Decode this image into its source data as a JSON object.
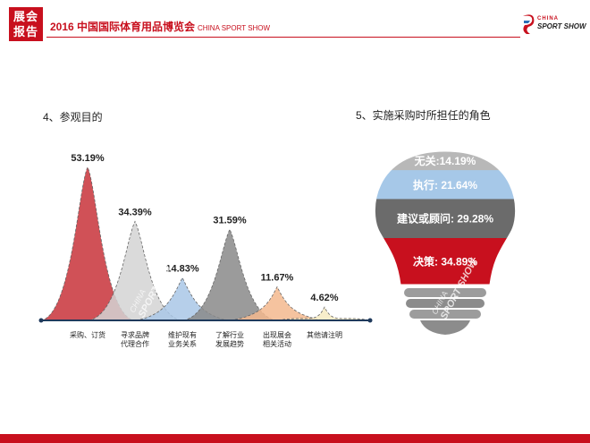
{
  "header": {
    "badge_top": "展会",
    "badge_bottom": "报告",
    "title": "2016 中国国际体育用品博览会",
    "title_en": "CHINA SPORT SHOW",
    "logo_line1": "CHINA",
    "logo_line2": "SPORT SHOW"
  },
  "watermark": {
    "line1": "CHINA",
    "line2": "SPORT SHOW"
  },
  "colors": {
    "brand": "#c8101e"
  },
  "chart_data": [
    {
      "type": "area",
      "title": "4、参观目的",
      "categories": [
        "采购、订货",
        "寻求品牌\n代理合作",
        "维护现有\n业务关系",
        "了解行业\n发展趋势",
        "出现展会\n相关活动",
        "其他请注明"
      ],
      "values": [
        53.19,
        34.39,
        14.83,
        31.59,
        11.67,
        4.62
      ],
      "labels": [
        "53.19%",
        "34.39%",
        "14.83%",
        "31.59%",
        "11.67%",
        "4.62%"
      ],
      "colors": [
        "#c8323a",
        "#d4d4d4",
        "#a9c7e6",
        "#8a8a8a",
        "#f3b98e",
        "#f7ebc2"
      ],
      "ylim": [
        0,
        60
      ]
    },
    {
      "type": "pie",
      "title": "5、实施采购时所担任的角色",
      "segments": [
        {
          "name": "无关",
          "value": 14.19,
          "label": "无关:14.19%",
          "color": "#b8b8b8"
        },
        {
          "name": "执行",
          "value": 21.64,
          "label": "执行: 21.64%",
          "color": "#a6c8e8"
        },
        {
          "name": "建议或顾问",
          "value": 29.28,
          "label": "建议或顾问: 29.28%",
          "color": "#6b6b6b"
        },
        {
          "name": "决策",
          "value": 34.89,
          "label": "决策: 34.89%",
          "color": "#c8101e"
        }
      ]
    }
  ]
}
